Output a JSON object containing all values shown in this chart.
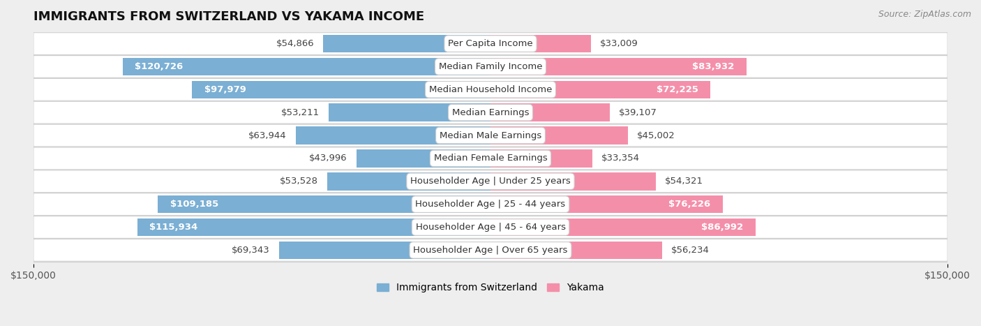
{
  "title": "IMMIGRANTS FROM SWITZERLAND VS YAKAMA INCOME",
  "source": "Source: ZipAtlas.com",
  "categories": [
    "Per Capita Income",
    "Median Family Income",
    "Median Household Income",
    "Median Earnings",
    "Median Male Earnings",
    "Median Female Earnings",
    "Householder Age | Under 25 years",
    "Householder Age | 25 - 44 years",
    "Householder Age | 45 - 64 years",
    "Householder Age | Over 65 years"
  ],
  "switzerland_values": [
    54866,
    120726,
    97979,
    53211,
    63944,
    43996,
    53528,
    109185,
    115934,
    69343
  ],
  "yakama_values": [
    33009,
    83932,
    72225,
    39107,
    45002,
    33354,
    54321,
    76226,
    86992,
    56234
  ],
  "switzerland_color_light": "#b8d0e8",
  "switzerland_color_mid": "#7bafd4",
  "switzerland_color_dark": "#5b9bd5",
  "yakama_color_light": "#f9c8d5",
  "yakama_color_mid": "#f48faa",
  "yakama_color_dark": "#e8607a",
  "background_color": "#eeeeee",
  "row_bg_color": "#ffffff",
  "row_sep_color": "#d0d0d0",
  "xlim": 150000,
  "bar_height": 0.78,
  "label_fontsize": 9.5,
  "value_fontsize": 9.5,
  "title_fontsize": 13,
  "source_fontsize": 9,
  "legend_fontsize": 10,
  "legend_label_switzerland": "Immigrants from Switzerland",
  "legend_label_yakama": "Yakama",
  "switzerland_threshold": 80000,
  "yakama_threshold": 65000
}
